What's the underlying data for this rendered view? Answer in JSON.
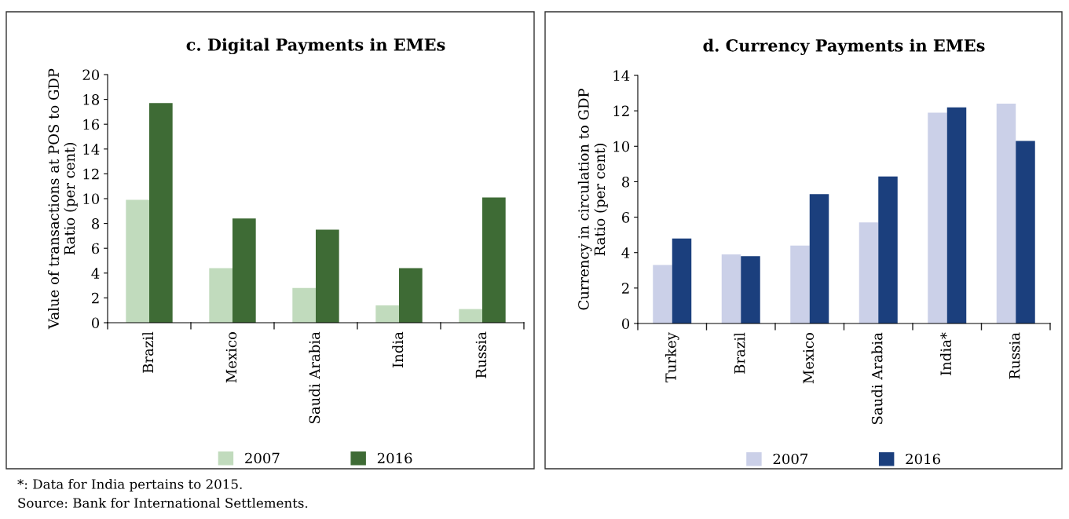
{
  "chart_data": [
    {
      "type": "bar",
      "title": "c. Digital Payments in EMEs",
      "ylabel": "Value of transactions at POS to GDP\nRatio (per cent)",
      "categories": [
        "Brazil",
        "Mexico",
        "Saudi Arabia",
        "India",
        "Russia"
      ],
      "series": [
        {
          "name": "2007",
          "color": "#c1dbbd",
          "values": [
            9.9,
            4.4,
            2.8,
            1.4,
            1.1
          ]
        },
        {
          "name": "2016",
          "color": "#3e6b35",
          "values": [
            17.7,
            8.4,
            7.5,
            4.4,
            10.1
          ]
        }
      ],
      "ylim": [
        0,
        20
      ],
      "yticks": [
        0,
        2,
        4,
        6,
        8,
        10,
        12,
        14,
        16,
        18,
        20
      ],
      "grid": false,
      "legend": "bottom",
      "annotations": [
        "*: Data for India pertains to 2015.",
        "Source: Bank for International Settlements."
      ]
    },
    {
      "type": "bar",
      "title": "d. Currency Payments in EMEs",
      "ylabel": "Currency in circulation to GDP\nRatio (per cent)",
      "categories": [
        "Turkey",
        "Brazil",
        "Mexico",
        "Saudi Arabia",
        "India*",
        "Russia"
      ],
      "series": [
        {
          "name": "2007",
          "color": "#cbd0e8",
          "values": [
            3.3,
            3.9,
            4.4,
            5.7,
            11.9,
            12.4
          ]
        },
        {
          "name": "2016",
          "color": "#1b3f7d",
          "values": [
            4.8,
            3.8,
            7.3,
            8.3,
            12.2,
            10.3
          ]
        }
      ],
      "ylim": [
        0,
        14
      ],
      "yticks": [
        0,
        2,
        4,
        6,
        8,
        10,
        12,
        14
      ],
      "grid": false,
      "legend": "bottom"
    }
  ]
}
